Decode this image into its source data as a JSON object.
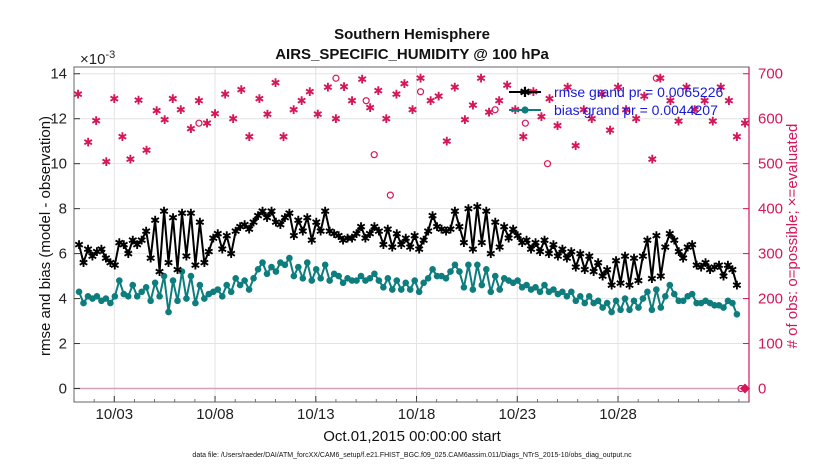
{
  "chart_data": {
    "type": "line",
    "title": "Southern Hemisphere",
    "subtitle": "AIRS_SPECIFIC_HUMIDITY @ 100 hPa",
    "xlabel": "Oct.01,2015 00:00:00 start",
    "ylabel": "rmse and bias (model - observation)",
    "y2label": "# of obs: o=possible; ×=evaluated",
    "y_scale_label": "×10",
    "y_scale_exp": "-3",
    "x_ticks": [
      "10/03",
      "10/08",
      "10/13",
      "10/18",
      "10/23",
      "10/28"
    ],
    "x_tick_days": [
      2,
      7,
      12,
      17,
      22,
      27
    ],
    "xlim": [
      0,
      33.5
    ],
    "ylim": [
      -0.6,
      14.3
    ],
    "y_ticks": [
      "0",
      "2",
      "4",
      "6",
      "8",
      "10",
      "12",
      "14"
    ],
    "y_tick_values": [
      0,
      2,
      4,
      6,
      8,
      10,
      12,
      14
    ],
    "y2lim": [
      -30,
      715
    ],
    "y2_ticks": [
      "0",
      "100",
      "200",
      "300",
      "400",
      "500",
      "600",
      "700"
    ],
    "y2_tick_values": [
      0,
      100,
      200,
      300,
      400,
      500,
      600,
      700
    ],
    "grid": true,
    "legend_position": "top-right",
    "series": [
      {
        "name": "rmse grand pr = 0.0065226",
        "color": "#000000",
        "values": [
          6.4,
          5.6,
          6.2,
          5.9,
          6.1,
          6.2,
          5.8,
          5.6,
          5.5,
          6.5,
          6.4,
          6.0,
          6.6,
          6.4,
          6.6,
          7.0,
          5.8,
          7.5,
          5.2,
          7.9,
          5.6,
          7.6,
          5.3,
          7.8,
          5.9,
          7.8,
          5.5,
          7.4,
          5.6,
          6.1,
          6.7,
          6.9,
          6.2,
          6.8,
          6.0,
          7.0,
          7.2,
          7.3,
          7.1,
          7.4,
          7.7,
          7.9,
          7.6,
          7.9,
          7.4,
          7.3,
          7.6,
          7.8,
          6.8,
          7.5,
          7.0,
          7.6,
          6.6,
          7.4,
          7.0,
          7.9,
          7.0,
          6.9,
          6.8,
          6.6,
          6.7,
          6.7,
          6.9,
          7.2,
          6.7,
          6.9,
          7.2,
          7.0,
          6.4,
          7.1,
          6.3,
          6.9,
          6.4,
          6.7,
          6.3,
          6.8,
          6.2,
          6.6,
          7.0,
          7.7,
          7.2,
          7.1,
          7.0,
          7.1,
          7.9,
          7.2,
          6.5,
          8.0,
          6.2,
          8.1,
          6.5,
          7.9,
          6.0,
          7.4,
          6.3,
          7.2,
          6.7,
          7.1,
          6.8,
          6.5,
          6.6,
          6.2,
          6.5,
          6.1,
          6.6,
          6.0,
          6.4,
          5.9,
          6.2,
          5.8,
          6.1,
          5.4,
          6.0,
          5.3,
          5.9,
          5.2,
          5.6,
          5.0,
          5.3,
          4.6,
          5.7,
          4.7,
          5.9,
          4.6,
          5.8,
          4.8,
          5.9,
          6.6,
          4.9,
          6.8,
          5.0,
          6.3,
          6.9,
          6.6,
          6.1,
          5.8,
          6.3,
          6.4,
          5.5,
          5.4,
          5.6,
          5.3,
          5.4,
          5.5,
          5.0,
          5.5,
          5.3,
          4.6
        ],
        "style": "line with star markers"
      },
      {
        "name": "bias grand pr = 0.0044207",
        "color": "#0e7d7d",
        "values": [
          4.3,
          3.8,
          4.1,
          4.0,
          4.1,
          3.9,
          4.0,
          3.8,
          4.1,
          4.8,
          4.2,
          4.1,
          4.6,
          4.1,
          4.3,
          4.5,
          3.9,
          4.7,
          4.1,
          5.0,
          3.4,
          4.8,
          3.9,
          5.2,
          4.0,
          5.0,
          3.8,
          4.6,
          4.0,
          4.2,
          4.3,
          4.4,
          4.1,
          4.6,
          4.3,
          4.9,
          4.6,
          4.8,
          4.4,
          4.9,
          5.3,
          5.6,
          5.1,
          5.4,
          5.2,
          5.6,
          5.5,
          5.8,
          5.0,
          5.4,
          4.9,
          5.6,
          4.8,
          5.3,
          4.9,
          5.5,
          4.8,
          5.1,
          5.0,
          4.7,
          4.9,
          4.8,
          4.8,
          5.0,
          4.8,
          4.9,
          5.1,
          4.8,
          4.5,
          4.9,
          4.4,
          4.8,
          4.4,
          4.7,
          4.4,
          4.8,
          4.3,
          4.7,
          4.9,
          5.3,
          5.0,
          5.0,
          4.9,
          5.2,
          5.5,
          5.2,
          4.5,
          5.5,
          4.4,
          5.5,
          4.6,
          5.3,
          4.3,
          5.0,
          4.4,
          4.9,
          4.8,
          4.7,
          4.8,
          4.5,
          4.6,
          4.4,
          4.5,
          4.3,
          4.6,
          4.3,
          4.4,
          4.2,
          4.3,
          4.1,
          4.3,
          3.9,
          4.1,
          3.8,
          4.1,
          3.8,
          3.9,
          3.6,
          3.8,
          3.4,
          3.9,
          3.5,
          4.0,
          3.5,
          3.9,
          3.6,
          4.0,
          4.3,
          3.5,
          4.4,
          3.6,
          4.1,
          4.6,
          4.2,
          3.9,
          3.9,
          4.1,
          4.2,
          3.8,
          3.8,
          3.9,
          3.8,
          3.7,
          3.7,
          3.6,
          3.9,
          3.8,
          3.3
        ],
        "style": "line with dot markers"
      },
      {
        "name": "# of obs evaluated",
        "color": "#d6165a",
        "axis": "right",
        "x_days": [
          0.2,
          0.7,
          1.1,
          1.6,
          2.0,
          2.4,
          2.8,
          3.2,
          3.6,
          4.1,
          4.5,
          4.9,
          5.3,
          5.8,
          6.2,
          6.6,
          7.0,
          7.5,
          7.9,
          8.3,
          8.7,
          9.2,
          9.6,
          10.0,
          10.4,
          10.9,
          11.3,
          11.7,
          12.1,
          12.6,
          13.0,
          13.4,
          13.8,
          14.3,
          14.7,
          15.1,
          15.5,
          16.0,
          16.4,
          16.8,
          17.2,
          17.7,
          18.1,
          18.5,
          18.9,
          19.4,
          19.8,
          20.2,
          20.6,
          21.1,
          21.5,
          21.9,
          22.3,
          22.8,
          23.2,
          23.6,
          24.0,
          24.5,
          24.9,
          25.3,
          25.7,
          26.2,
          26.6,
          27.0,
          27.4,
          27.9,
          28.3,
          28.7,
          29.1,
          29.6,
          30.0,
          30.4,
          30.8,
          31.3,
          31.7,
          32.1,
          32.5,
          32.9,
          33.3
        ],
        "values": [
          655,
          548,
          596,
          505,
          645,
          560,
          510,
          642,
          530,
          618,
          598,
          645,
          620,
          578,
          640,
          590,
          612,
          655,
          600,
          665,
          560,
          645,
          610,
          680,
          560,
          620,
          640,
          660,
          610,
          670,
          600,
          672,
          640,
          688,
          625,
          663,
          600,
          655,
          678,
          620,
          690,
          640,
          650,
          550,
          670,
          598,
          630,
          690,
          615,
          640,
          675,
          620,
          560,
          660,
          605,
          645,
          585,
          670,
          540,
          620,
          600,
          655,
          575,
          670,
          620,
          600,
          650,
          510,
          690,
          640,
          595,
          670,
          620,
          640,
          595,
          670,
          640,
          560,
          590
        ],
        "style": "star markers only"
      },
      {
        "name": "# of obs possible",
        "color": "#d6165a",
        "axis": "right",
        "x_days": [
          6.2,
          13.0,
          14.5,
          14.9,
          15.7,
          17.2,
          20.9,
          22.4,
          23.5,
          28.9,
          33.1
        ],
        "values": [
          590,
          690,
          640,
          520,
          430,
          660,
          620,
          590,
          500,
          690,
          0
        ],
        "style": "open circle markers"
      }
    ]
  },
  "footer": "data file: /Users/raeder/DAI/ATM_forcXX/CAM6_setup/f.e21.FHIST_BGC.f09_025.CAM6assim.011/Diags_NTrS_2015-10/obs_diag_output.nc"
}
